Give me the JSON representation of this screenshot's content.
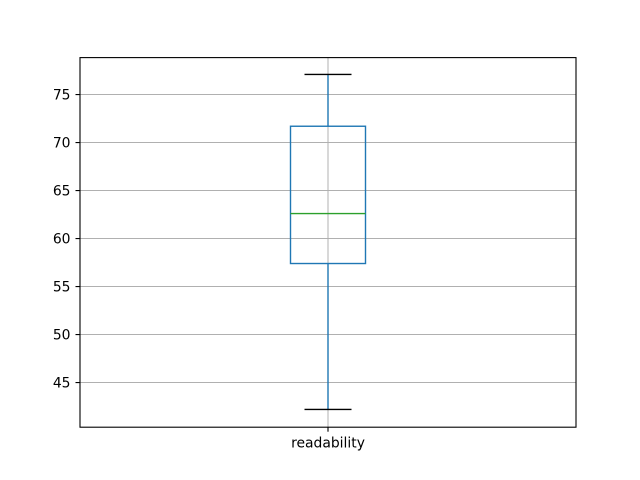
{
  "figure": {
    "background": "#ffffff"
  },
  "chart_data": {
    "type": "boxplot",
    "title": "",
    "xlabel": "",
    "ylabel": "",
    "categories": [
      "readability"
    ],
    "series": [
      {
        "name": "readability",
        "stats": {
          "whisker_low": 42.2,
          "q1": 57.4,
          "median": 62.6,
          "q3": 71.7,
          "whisker_high": 77.1
        },
        "outliers": []
      }
    ],
    "y_axis": {
      "ticks": [
        45,
        50,
        55,
        60,
        65,
        70,
        75
      ],
      "lim": [
        40.35,
        78.85
      ]
    },
    "x_axis": {
      "positions": [
        1
      ],
      "lim": [
        0.5,
        1.5
      ]
    },
    "grid": true,
    "legend": "none",
    "colors": {
      "box": "#1f77b4",
      "whisker": "#1f77b4",
      "cap": "#000000",
      "median": "#2ca02c",
      "grid": "#b0b0b0",
      "spine": "#000000",
      "text": "#000000",
      "background": "#ffffff"
    }
  }
}
